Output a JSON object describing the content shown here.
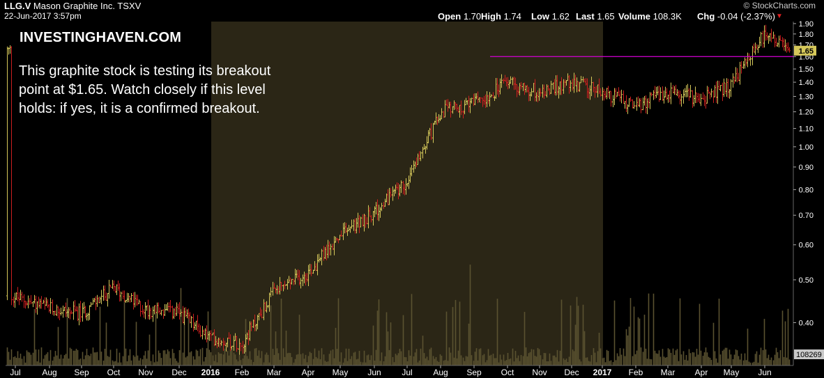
{
  "header": {
    "symbol": "LLG.V",
    "company": "Mason Graphite Inc.",
    "exchange": "TSXV",
    "datetime": "22-Jun-2017 3:57pm",
    "source": "© StockCharts.com",
    "stats": [
      {
        "key": "Open",
        "value": "1.70"
      },
      {
        "key": "High",
        "value": "1.74"
      },
      {
        "key": "Low",
        "value": "1.62"
      },
      {
        "key": "Last",
        "value": "1.65"
      },
      {
        "key": "Volume",
        "value": "108.3K"
      },
      {
        "key": "Chg",
        "value": "-0.04 (-2.37%)"
      }
    ]
  },
  "annotation": {
    "brand": "INVESTINGHAVEN.COM",
    "lines": [
      "This graphite stock is testing its breakout",
      "point at $1.65. Watch closely if this level",
      "holds: if yes, it is a confirmed breakout."
    ]
  },
  "colors": {
    "background": "#000000",
    "shaded_band": "#2b2616",
    "up_bar": "#d6c85a",
    "down_bar": "#cc1f1f",
    "volume": "#5a5230",
    "breakout_line": "#d400d4",
    "axis_text": "#ffffff",
    "last_tag_bg": "#d6c85a"
  },
  "chart_data": {
    "type": "ohlc",
    "title": "LLG.V Mason Graphite Inc. TSXV",
    "y_scale": "log",
    "ylim": [
      0.32,
      1.92
    ],
    "y_ticks": [
      0.4,
      0.5,
      0.6,
      0.7,
      0.8,
      0.9,
      1.0,
      1.1,
      1.2,
      1.3,
      1.4,
      1.5,
      1.6,
      1.7,
      1.8,
      1.9
    ],
    "y_tick_labels": [
      "0.40",
      "0.50",
      "0.60",
      "0.70",
      "0.80",
      "0.90",
      "1.00",
      "1.10",
      "1.20",
      "1.30",
      "1.40",
      "1.50",
      "1.60",
      "1.70",
      "1.80",
      "1.90"
    ],
    "x_ticks": [
      "Jul",
      "Aug",
      "Sep",
      "Oct",
      "Nov",
      "Dec",
      "2016",
      "Feb",
      "Mar",
      "Apr",
      "May",
      "Jun",
      "Jul",
      "Aug",
      "Sep",
      "Oct",
      "Nov",
      "Dec",
      "2017",
      "Feb",
      "Mar",
      "Apr",
      "May",
      "Jun"
    ],
    "x_ticks_bold": [
      "2016",
      "2017"
    ],
    "breakout_level": 1.6,
    "last_price": 1.65,
    "last_price_label": "1.65",
    "volume_label": "108269",
    "shaded_period": [
      "2016",
      "2016-12"
    ],
    "price_path": [
      {
        "date": "2015-07",
        "close": 0.46
      },
      {
        "date": "2015-08",
        "close": 0.43
      },
      {
        "date": "2015-09",
        "close": 0.42
      },
      {
        "date": "2015-10",
        "close": 0.48
      },
      {
        "date": "2015-11",
        "close": 0.43
      },
      {
        "date": "2015-12",
        "close": 0.42
      },
      {
        "date": "2016-01",
        "close": 0.37
      },
      {
        "date": "2016-02",
        "close": 0.36
      },
      {
        "date": "2016-03",
        "close": 0.47
      },
      {
        "date": "2016-04",
        "close": 0.52
      },
      {
        "date": "2016-05",
        "close": 0.63
      },
      {
        "date": "2016-06",
        "close": 0.71
      },
      {
        "date": "2016-07",
        "close": 0.84
      },
      {
        "date": "2016-08",
        "close": 1.2
      },
      {
        "date": "2016-09",
        "close": 1.25
      },
      {
        "date": "2016-10",
        "close": 1.4
      },
      {
        "date": "2016-11",
        "close": 1.33
      },
      {
        "date": "2016-12",
        "close": 1.4
      },
      {
        "date": "2017-01",
        "close": 1.33
      },
      {
        "date": "2017-02",
        "close": 1.23
      },
      {
        "date": "2017-03",
        "close": 1.33
      },
      {
        "date": "2017-04",
        "close": 1.28
      },
      {
        "date": "2017-05",
        "close": 1.38
      },
      {
        "date": "2017-06",
        "close": 1.8
      },
      {
        "date": "2017-06-22",
        "close": 1.65
      }
    ]
  }
}
